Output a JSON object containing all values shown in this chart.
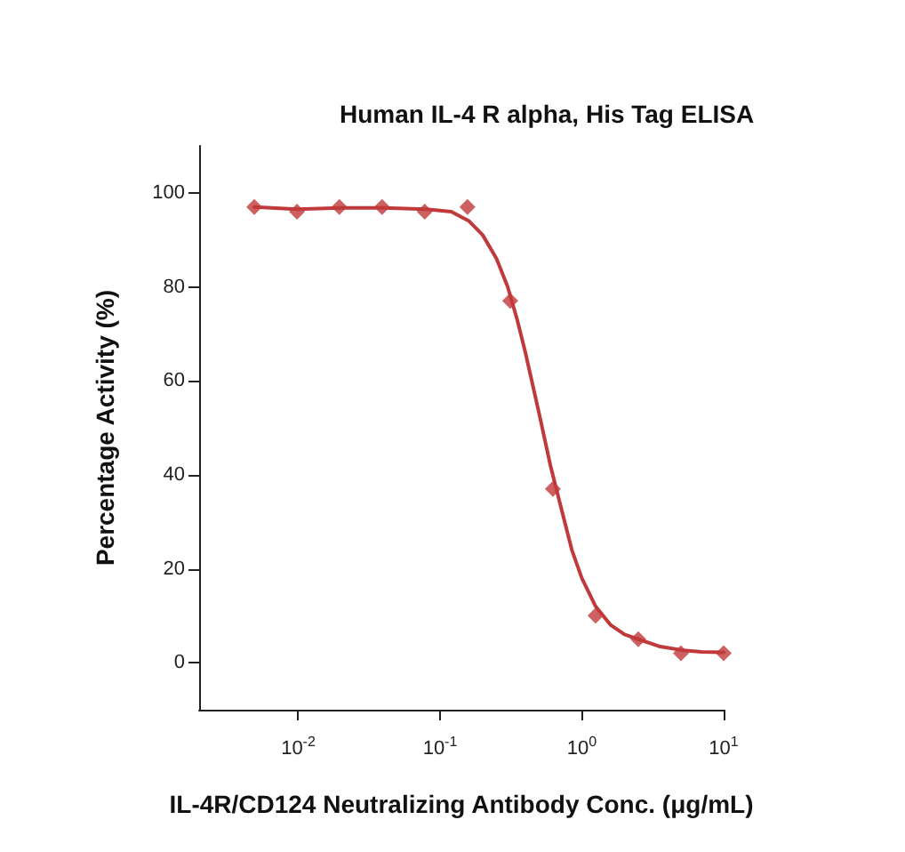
{
  "chart_data": {
    "type": "scatter",
    "title": "Human IL-4 R alpha, His Tag ELISA",
    "xlabel": "IL-4R/CD124 Neutralizing Antibody Conc. (μg/mL)",
    "ylabel": "Percentage Activity (%)",
    "log": "x",
    "xlim": [
      0.002,
      10
    ],
    "ylim": [
      -10,
      110
    ],
    "xticks": [
      {
        "value": 0.01,
        "label": "10$^{-2}$"
      },
      {
        "value": 0.1,
        "label": "10$^{-1}$"
      },
      {
        "value": 1,
        "label": "10$^{0}$"
      },
      {
        "value": 10,
        "label": "10$^{1}$"
      }
    ],
    "yticks": [
      0,
      20,
      40,
      60,
      80,
      100
    ],
    "grid": false,
    "marker": "diamond",
    "series": [
      {
        "color": "#c0393b",
        "x": [
          0.0049,
          0.0098,
          0.0195,
          0.039,
          0.078,
          0.156,
          0.3125,
          0.625,
          1.25,
          2.5,
          5,
          10
        ],
        "values": [
          97,
          96,
          97,
          97,
          96,
          97,
          77,
          37,
          10,
          5,
          2,
          2
        ]
      },
      {
        "type": "line",
        "color": "#c0393b",
        "marker": "none",
        "line_style": "solid",
        "x": [
          0.0049,
          0.0098,
          0.02,
          0.04,
          0.08,
          0.12,
          0.16,
          0.2,
          0.25,
          0.3,
          0.35,
          0.4,
          0.5,
          0.6,
          0.7,
          0.85,
          1,
          1.25,
          1.6,
          2,
          2.5,
          3.5,
          5,
          7,
          10
        ],
        "values": [
          97,
          96.5,
          96.8,
          96.8,
          96.5,
          96,
          94,
          91,
          86,
          80,
          73,
          66,
          53,
          42,
          34,
          24,
          18,
          12,
          8,
          6,
          5,
          3.5,
          2.7,
          2.3,
          2.2
        ]
      }
    ]
  }
}
